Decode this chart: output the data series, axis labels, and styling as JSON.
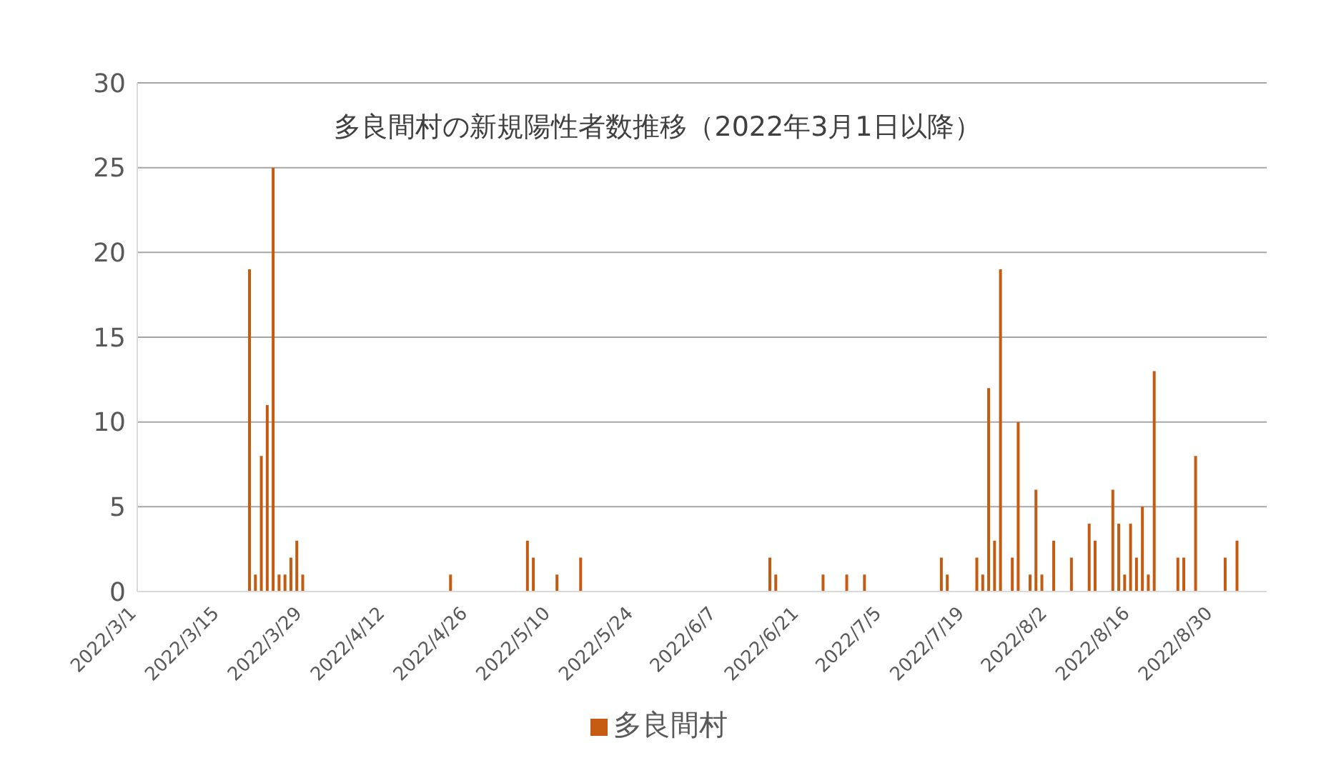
{
  "chart_data": {
    "type": "bar",
    "title": "多良間村の新規陽性者数推移（2022年3月1日以降）",
    "x": [
      "2022-03-20",
      "2022-03-21",
      "2022-03-22",
      "2022-03-23",
      "2022-03-24",
      "2022-03-25",
      "2022-03-26",
      "2022-03-27",
      "2022-03-28",
      "2022-03-29",
      "2022-04-23",
      "2022-05-06",
      "2022-05-07",
      "2022-05-11",
      "2022-05-15",
      "2022-06-16",
      "2022-06-17",
      "2022-06-25",
      "2022-06-29",
      "2022-07-02",
      "2022-07-15",
      "2022-07-16",
      "2022-07-21",
      "2022-07-22",
      "2022-07-23",
      "2022-07-24",
      "2022-07-25",
      "2022-07-27",
      "2022-07-28",
      "2022-07-30",
      "2022-07-31",
      "2022-08-01",
      "2022-08-03",
      "2022-08-06",
      "2022-08-09",
      "2022-08-10",
      "2022-08-13",
      "2022-08-14",
      "2022-08-15",
      "2022-08-16",
      "2022-08-17",
      "2022-08-18",
      "2022-08-19",
      "2022-08-20",
      "2022-08-24",
      "2022-08-25",
      "2022-08-27",
      "2022-09-01",
      "2022-09-03"
    ],
    "series": [
      {
        "name": "多良間村",
        "color": "#c55a11",
        "values": [
          19,
          1,
          8,
          11,
          25,
          1,
          1,
          2,
          3,
          1,
          1,
          3,
          2,
          1,
          2,
          2,
          1,
          1,
          1,
          1,
          2,
          1,
          2,
          1,
          12,
          3,
          19,
          2,
          10,
          1,
          6,
          1,
          3,
          2,
          4,
          3,
          6,
          4,
          1,
          4,
          2,
          5,
          1,
          13,
          2,
          2,
          8,
          2,
          3
        ]
      }
    ],
    "xlim": [
      "2022-03-01",
      "2022-09-08"
    ],
    "xticks": [
      {
        "value": "2022-03-01",
        "label": "2022/3/1"
      },
      {
        "value": "2022-03-15",
        "label": "2022/3/15"
      },
      {
        "value": "2022-03-29",
        "label": "2022/3/29"
      },
      {
        "value": "2022-04-12",
        "label": "2022/4/12"
      },
      {
        "value": "2022-04-26",
        "label": "2022/4/26"
      },
      {
        "value": "2022-05-10",
        "label": "2022/5/10"
      },
      {
        "value": "2022-05-24",
        "label": "2022/5/24"
      },
      {
        "value": "2022-06-07",
        "label": "2022/6/7"
      },
      {
        "value": "2022-06-21",
        "label": "2022/6/21"
      },
      {
        "value": "2022-07-05",
        "label": "2022/7/5"
      },
      {
        "value": "2022-07-19",
        "label": "2022/7/19"
      },
      {
        "value": "2022-08-02",
        "label": "2022/8/2"
      },
      {
        "value": "2022-08-16",
        "label": "2022/8/16"
      },
      {
        "value": "2022-08-30",
        "label": "2022/8/30"
      }
    ],
    "ylim": [
      0,
      30
    ],
    "yticks": [
      0,
      5,
      10,
      15,
      20,
      25,
      30
    ],
    "grid": "y",
    "legend": "bottom"
  }
}
